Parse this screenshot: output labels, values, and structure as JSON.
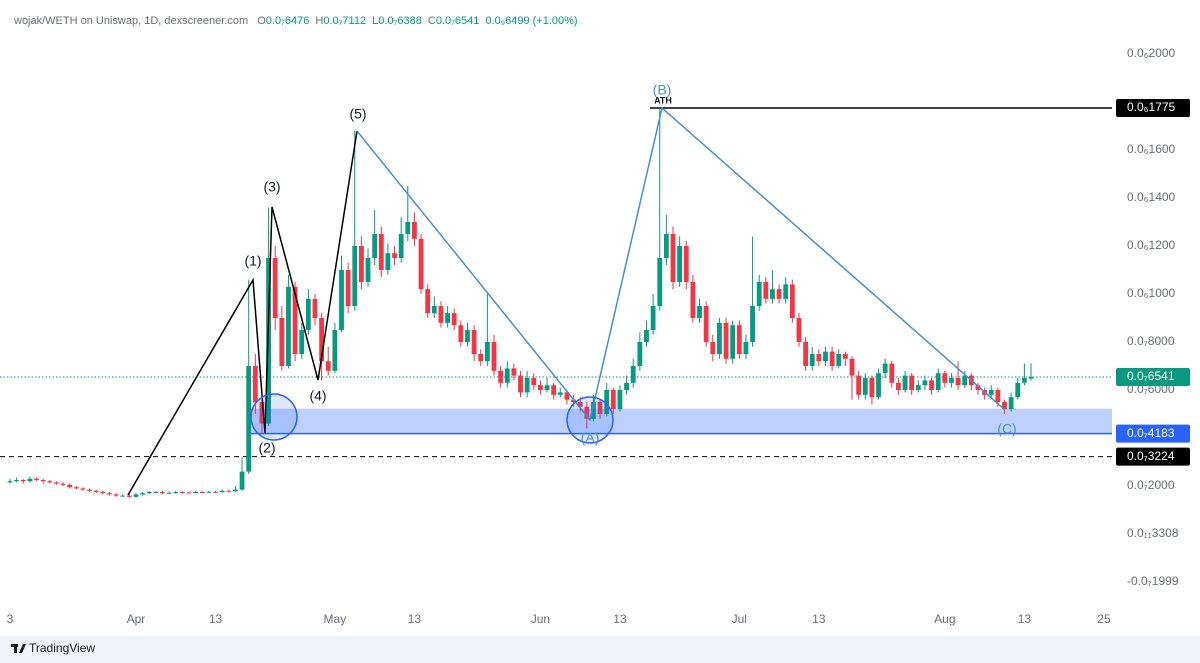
{
  "header": {
    "symbol": "wojak/WETH on Uniswap, 1D, dexscreener.com",
    "ohlc": [
      {
        "label": "O",
        "value": "0.0₇6476"
      },
      {
        "label": "H",
        "value": "0.0₇7112"
      },
      {
        "label": "L",
        "value": "0.0₇6388"
      },
      {
        "label": "C",
        "value": "0.0₇6541"
      }
    ],
    "change": "0.0₉6499 (+1.00%)"
  },
  "footer": {
    "brand": "TradingView"
  },
  "chart_data": {
    "type": "candlestick",
    "up_color": "#089981",
    "down_color": "#f23645",
    "categories": [
      "3",
      null,
      null,
      null,
      null,
      null,
      null,
      null,
      null,
      null,
      null,
      null,
      null,
      null,
      null,
      null,
      null,
      null,
      null,
      "Apr",
      null,
      null,
      null,
      null,
      null,
      null,
      null,
      null,
      null,
      null,
      null,
      "13",
      null,
      null,
      null,
      null,
      null,
      null,
      null,
      null,
      null,
      null,
      null,
      null,
      null,
      null,
      null,
      null,
      null,
      "May",
      null,
      null,
      null,
      null,
      null,
      null,
      null,
      null,
      null,
      null,
      null,
      "13",
      null,
      null,
      null,
      null,
      null,
      null,
      null,
      null,
      null,
      null,
      null,
      null,
      null,
      null,
      null,
      null,
      null,
      null,
      "Jun",
      null,
      null,
      null,
      null,
      null,
      null,
      null,
      null,
      null,
      null,
      null,
      "13",
      null,
      null,
      null,
      null,
      null,
      null,
      null,
      null,
      null,
      null,
      null,
      null,
      null,
      null,
      null,
      null,
      null,
      "Jul",
      null,
      null,
      null,
      null,
      null,
      null,
      null,
      null,
      null,
      null,
      null,
      "13",
      null,
      null,
      null,
      null,
      null,
      null,
      null,
      null,
      null,
      null,
      null,
      null,
      null,
      null,
      null,
      null,
      null,
      null,
      "Aug",
      null,
      null,
      null,
      null,
      null,
      null,
      null,
      null,
      null,
      null,
      null,
      "13",
      null,
      null,
      null,
      null,
      null,
      null,
      null,
      null,
      null,
      null,
      null,
      "25"
    ],
    "ohlc": [
      [
        2.15e-08,
        2.3e-08,
        2.1e-08,
        2.2e-08
      ],
      [
        2.2e-08,
        2.35e-08,
        2.15e-08,
        2.25e-08
      ],
      [
        2.25e-08,
        2.3e-08,
        2.1e-08,
        2.2e-08
      ],
      [
        2.2e-08,
        2.4e-08,
        2.15e-08,
        2.3e-08
      ],
      [
        2.3e-08,
        2.35e-08,
        2.2e-08,
        2.25e-08
      ],
      [
        2.25e-08,
        2.3e-08,
        2.1e-08,
        2.2e-08
      ],
      [
        2.2e-08,
        2.25e-08,
        2.1e-08,
        2.15e-08
      ],
      [
        2.15e-08,
        2.2e-08,
        2.05e-08,
        2.1e-08
      ],
      [
        2.1e-08,
        2.15e-08,
        2e-08,
        2.05e-08
      ],
      [
        2.05e-08,
        2.1e-08,
        1.9e-08,
        1.95e-08
      ],
      [
        1.95e-08,
        2e-08,
        1.85e-08,
        1.9e-08
      ],
      [
        1.9e-08,
        1.95e-08,
        1.8e-08,
        1.85e-08
      ],
      [
        1.85e-08,
        1.9e-08,
        1.75e-08,
        1.8e-08
      ],
      [
        1.8e-08,
        1.85e-08,
        1.7e-08,
        1.75e-08
      ],
      [
        1.75e-08,
        1.8e-08,
        1.65e-08,
        1.7e-08
      ],
      [
        1.7e-08,
        1.75e-08,
        1.6e-08,
        1.65e-08
      ],
      [
        1.65e-08,
        1.7e-08,
        1.55e-08,
        1.6e-08
      ],
      [
        1.6e-08,
        1.65e-08,
        1.55e-08,
        1.6e-08
      ],
      [
        1.6e-08,
        1.65e-08,
        1.5e-08,
        1.55e-08
      ],
      [
        1.55e-08,
        1.7e-08,
        1.5e-08,
        1.65e-08
      ],
      [
        1.65e-08,
        1.75e-08,
        1.6e-08,
        1.7e-08
      ],
      [
        1.7e-08,
        1.8e-08,
        1.65e-08,
        1.75e-08
      ],
      [
        1.75e-08,
        1.8e-08,
        1.7e-08,
        1.75e-08
      ],
      [
        1.75e-08,
        1.8e-08,
        1.65e-08,
        1.7e-08
      ],
      [
        1.7e-08,
        1.78e-08,
        1.66e-08,
        1.72e-08
      ],
      [
        1.72e-08,
        1.8e-08,
        1.68e-08,
        1.75e-08
      ],
      [
        1.75e-08,
        1.78e-08,
        1.68e-08,
        1.73e-08
      ],
      [
        1.73e-08,
        1.77e-08,
        1.68e-08,
        1.72e-08
      ],
      [
        1.72e-08,
        1.8e-08,
        1.7e-08,
        1.75e-08
      ],
      [
        1.75e-08,
        1.78e-08,
        1.7e-08,
        1.74e-08
      ],
      [
        1.74e-08,
        1.8e-08,
        1.7e-08,
        1.76e-08
      ],
      [
        1.76e-08,
        1.8e-08,
        1.7e-08,
        1.75e-08
      ],
      [
        1.75e-08,
        1.85e-08,
        1.72e-08,
        1.8e-08
      ],
      [
        1.8e-08,
        1.84e-08,
        1.74e-08,
        1.78e-08
      ],
      [
        1.78e-08,
        2e-08,
        1.75e-08,
        1.85e-08
      ],
      [
        1.85e-08,
        3.2e-08,
        1.8e-08,
        2.6e-08
      ],
      [
        2.6e-08,
        1.06e-07,
        2.5e-08,
        7e-08
      ],
      [
        7e-08,
        7.5e-08,
        5e-08,
        5.5e-08
      ],
      [
        5.5e-08,
        6e-08,
        4.2e-08,
        4.6e-08
      ],
      [
        4.6e-08,
        1.36e-07,
        4.5e-08,
        1.15e-07
      ],
      [
        1.15e-07,
        1.2e-07,
        8.5e-08,
        9e-08
      ],
      [
        9e-08,
        9.5e-08,
        6.8e-08,
        7e-08
      ],
      [
        7e-08,
        1.08e-07,
        6.9e-08,
        1.03e-07
      ],
      [
        1.03e-07,
        1.05e-07,
        7.2e-08,
        7.5e-08
      ],
      [
        7.5e-08,
        8.8e-08,
        7.3e-08,
        8.5e-08
      ],
      [
        8.5e-08,
        1.02e-07,
        8.3e-08,
        9.8e-08
      ],
      [
        9.8e-08,
        1e-07,
        8.7e-08,
        9e-08
      ],
      [
        9e-08,
        9.2e-08,
        6.4e-08,
        7.2e-08
      ],
      [
        7.2e-08,
        7.8e-08,
        6.6e-08,
        6.8e-08
      ],
      [
        6.8e-08,
        8.8e-08,
        6.7e-08,
        8.5e-08
      ],
      [
        8.5e-08,
        1.16e-07,
        8.4e-08,
        1.1e-07
      ],
      [
        1.1e-07,
        1.13e-07,
        9.2e-08,
        9.5e-08
      ],
      [
        9.5e-08,
        1.68e-07,
        9.3e-08,
        1.2e-07
      ],
      [
        1.2e-07,
        1.24e-07,
        1.02e-07,
        1.05e-07
      ],
      [
        1.05e-07,
        1.19e-07,
        1.03e-07,
        1.15e-07
      ],
      [
        1.15e-07,
        1.35e-07,
        1.12e-07,
        1.25e-07
      ],
      [
        1.25e-07,
        1.28e-07,
        1.07e-07,
        1.1e-07
      ],
      [
        1.1e-07,
        1.21e-07,
        1.08e-07,
        1.17e-07
      ],
      [
        1.17e-07,
        1.2e-07,
        1.12e-07,
        1.15e-07
      ],
      [
        1.15e-07,
        1.32e-07,
        1.13e-07,
        1.25e-07
      ],
      [
        1.25e-07,
        1.45e-07,
        1.22e-07,
        1.3e-07
      ],
      [
        1.3e-07,
        1.34e-07,
        1.2e-07,
        1.23e-07
      ],
      [
        1.23e-07,
        1.25e-07,
        1e-07,
        1.02e-07
      ],
      [
        1.02e-07,
        1.04e-07,
        9e-08,
        9.2e-08
      ],
      [
        9.2e-08,
        9.9e-08,
        9e-08,
        9.5e-08
      ],
      [
        9.5e-08,
        9.7e-08,
        8.6e-08,
        8.8e-08
      ],
      [
        8.8e-08,
        9.5e-08,
        8.6e-08,
        9.2e-08
      ],
      [
        9.2e-08,
        9.4e-08,
        8.5e-08,
        8.7e-08
      ],
      [
        8.7e-08,
        8.9e-08,
        7.8e-08,
        8e-08
      ],
      [
        8e-08,
        8.8e-08,
        7.8e-08,
        8.5e-08
      ],
      [
        8.5e-08,
        8.7e-08,
        7.2e-08,
        7.5e-08
      ],
      [
        7.5e-08,
        7.7e-08,
        7e-08,
        7.2e-08
      ],
      [
        7.2e-08,
        1e-07,
        7e-08,
        8e-08
      ],
      [
        8e-08,
        8.3e-08,
        6.6e-08,
        6.8e-08
      ],
      [
        6.8e-08,
        7e-08,
        6.1e-08,
        6.3e-08
      ],
      [
        6.3e-08,
        7.2e-08,
        6.1e-08,
        6.9e-08
      ],
      [
        6.9e-08,
        7.1e-08,
        6.4e-08,
        6.6e-08
      ],
      [
        6.6e-08,
        6.8e-08,
        5.7e-08,
        5.9e-08
      ],
      [
        5.9e-08,
        6.8e-08,
        5.7e-08,
        6.5e-08
      ],
      [
        6.5e-08,
        6.7e-08,
        6e-08,
        6.2e-08
      ],
      [
        6.2e-08,
        6.4e-08,
        5.8e-08,
        6e-08
      ],
      [
        6e-08,
        6.5e-08,
        5.9e-08,
        6.2e-08
      ],
      [
        6.2e-08,
        6.3e-08,
        5.6e-08,
        5.8e-08
      ],
      [
        5.8e-08,
        6.1e-08,
        5.7e-08,
        5.9e-08
      ],
      [
        5.9e-08,
        6e-08,
        5.4e-08,
        5.6e-08
      ],
      [
        5.6e-08,
        5.8e-08,
        5.3e-08,
        5.5e-08
      ],
      [
        5.5e-08,
        5.7e-08,
        5.1e-08,
        5.3e-08
      ],
      [
        5.3e-08,
        5.5e-08,
        4.4e-08,
        4.8e-08
      ],
      [
        4.8e-08,
        5.8e-08,
        4.7e-08,
        5.5e-08
      ],
      [
        5.5e-08,
        5.6e-08,
        4.8e-08,
        5e-08
      ],
      [
        5e-08,
        6.3e-08,
        4.9e-08,
        6e-08
      ],
      [
        6e-08,
        6.1e-08,
        5e-08,
        5.2e-08
      ],
      [
        5.2e-08,
        6.2e-08,
        5.1e-08,
        6e-08
      ],
      [
        6e-08,
        6.6e-08,
        5.8e-08,
        6.3e-08
      ],
      [
        6.3e-08,
        7.3e-08,
        6.1e-08,
        7e-08
      ],
      [
        7e-08,
        8.4e-08,
        6.8e-08,
        8e-08
      ],
      [
        8e-08,
        8.9e-08,
        7.8e-08,
        8.5e-08
      ],
      [
        8.5e-08,
        1e-07,
        8.3e-08,
        9.5e-08
      ],
      [
        9.5e-08,
        1.775e-07,
        9.3e-08,
        1.15e-07
      ],
      [
        1.15e-07,
        1.33e-07,
        1.12e-07,
        1.25e-07
      ],
      [
        1.25e-07,
        1.28e-07,
        1.02e-07,
        1.05e-07
      ],
      [
        1.05e-07,
        1.24e-07,
        1.03e-07,
        1.2e-07
      ],
      [
        1.2e-07,
        1.22e-07,
        1.02e-07,
        1.05e-07
      ],
      [
        1.05e-07,
        1.08e-07,
        8.8e-08,
        9e-08
      ],
      [
        9e-08,
        9.8e-08,
        8.8e-08,
        9.5e-08
      ],
      [
        9.5e-08,
        9.7e-08,
        7.8e-08,
        8e-08
      ],
      [
        8e-08,
        8.3e-08,
        7.2e-08,
        7.5e-08
      ],
      [
        7.5e-08,
        9e-08,
        7.3e-08,
        8.8e-08
      ],
      [
        8.8e-08,
        9e-08,
        7.1e-08,
        7.3e-08
      ],
      [
        7.3e-08,
        8.9e-08,
        7.1e-08,
        8.7e-08
      ],
      [
        8.7e-08,
        8.9e-08,
        7.3e-08,
        7.5e-08
      ],
      [
        7.5e-08,
        8.3e-08,
        7.3e-08,
        8e-08
      ],
      [
        8e-08,
        1.24e-07,
        7.8e-08,
        9.5e-08
      ],
      [
        9.5e-08,
        1.08e-07,
        9.3e-08,
        1.05e-07
      ],
      [
        1.05e-07,
        1.07e-07,
        9.6e-08,
        9.8e-08
      ],
      [
        9.8e-08,
        1.1e-07,
        9.6e-08,
        1.02e-07
      ],
      [
        1.02e-07,
        1.04e-07,
        9.6e-08,
        9.8e-08
      ],
      [
        9.8e-08,
        1.07e-07,
        9.6e-08,
        1.04e-07
      ],
      [
        1.04e-07,
        1.06e-07,
        8.8e-08,
        9e-08
      ],
      [
        9e-08,
        9.2e-08,
        7.8e-08,
        8e-08
      ],
      [
        8e-08,
        8.2e-08,
        6.8e-08,
        7e-08
      ],
      [
        7e-08,
        7.8e-08,
        6.8e-08,
        7.5e-08
      ],
      [
        7.5e-08,
        7.7e-08,
        7e-08,
        7.2e-08
      ],
      [
        7.2e-08,
        7.8e-08,
        7e-08,
        7.6e-08
      ],
      [
        7.6e-08,
        7.8e-08,
        6.8e-08,
        7e-08
      ],
      [
        7e-08,
        7.7e-08,
        6.9e-08,
        7.5e-08
      ],
      [
        7.5e-08,
        7.6e-08,
        7e-08,
        7.3e-08
      ],
      [
        7.3e-08,
        7.4e-08,
        5.6e-08,
        6.6e-08
      ],
      [
        6.6e-08,
        6.8e-08,
        5.6e-08,
        5.8e-08
      ],
      [
        5.8e-08,
        6.7e-08,
        5.6e-08,
        6.5e-08
      ],
      [
        6.5e-08,
        6.6e-08,
        5.4e-08,
        5.7e-08
      ],
      [
        5.7e-08,
        6.9e-08,
        5.6e-08,
        6.7e-08
      ],
      [
        6.7e-08,
        7.3e-08,
        6.5e-08,
        7.1e-08
      ],
      [
        7.1e-08,
        7.2e-08,
        6.1e-08,
        6.3e-08
      ],
      [
        6.3e-08,
        6.5e-08,
        5.8e-08,
        6e-08
      ],
      [
        6e-08,
        6.8e-08,
        5.9e-08,
        6.6e-08
      ],
      [
        6.6e-08,
        6.7e-08,
        5.8e-08,
        6e-08
      ],
      [
        6e-08,
        6.4e-08,
        5.9e-08,
        6.2e-08
      ],
      [
        6.2e-08,
        6.6e-08,
        6e-08,
        6.4e-08
      ],
      [
        6.4e-08,
        6.5e-08,
        5.8e-08,
        6e-08
      ],
      [
        6e-08,
        6.9e-08,
        5.9e-08,
        6.7e-08
      ],
      [
        6.7e-08,
        6.8e-08,
        6.1e-08,
        6.3e-08
      ],
      [
        6.3e-08,
        6.7e-08,
        6.1e-08,
        6.5e-08
      ],
      [
        6.5e-08,
        7.2e-08,
        6e-08,
        6.2e-08
      ],
      [
        6.2e-08,
        6.8e-08,
        6.1e-08,
        6.6e-08
      ],
      [
        6.6e-08,
        6.7e-08,
        6e-08,
        6.2e-08
      ],
      [
        6.2e-08,
        6.3e-08,
        5.8e-08,
        6e-08
      ],
      [
        6e-08,
        6.1e-08,
        5.6e-08,
        5.8e-08
      ],
      [
        5.8e-08,
        6.2e-08,
        5.7e-08,
        6e-08
      ],
      [
        6e-08,
        6.1e-08,
        5.3e-08,
        5.5e-08
      ],
      [
        5.5e-08,
        5.6e-08,
        5e-08,
        5.2e-08
      ],
      [
        5.2e-08,
        5.9e-08,
        5.1e-08,
        5.7e-08
      ],
      [
        5.7e-08,
        6.5e-08,
        5.6e-08,
        6.3e-08
      ],
      [
        6.3e-08,
        7.1e-08,
        6.2e-08,
        6.5e-08
      ],
      [
        6.476e-08,
        7.112e-08,
        6.388e-08,
        6.541e-08
      ],
      null,
      null,
      null,
      null,
      null,
      null,
      null,
      null,
      null,
      null,
      null
    ],
    "ylim": [
      -3.083e-08,
      2.225e-07
    ],
    "yticks": [
      {
        "value": 2e-07,
        "label": "0.0₆2000"
      },
      {
        "value": 1.6e-07,
        "label": "0.0₆1600"
      },
      {
        "value": 1.4e-07,
        "label": "0.0₆1400"
      },
      {
        "value": 1.2e-07,
        "label": "0.0₆1200"
      },
      {
        "value": 1e-07,
        "label": "0.0₆1000"
      },
      {
        "value": 8e-08,
        "label": "0.0₇8000"
      },
      {
        "value": 6e-08,
        "label": "0.0₇6000"
      },
      {
        "value": 2e-08,
        "label": "0.0₇2000"
      },
      {
        "value": 3.308e-12,
        "label": "0.0₁₁3308"
      },
      {
        "value": -1.999e-08,
        "label": "-0.0₇1999"
      }
    ],
    "price_lines": [
      {
        "value": 1.775e-07,
        "label": "0.0₆1775",
        "color": "#000000",
        "style": "solid"
      },
      {
        "value": 6.541e-08,
        "label": "0.0₇6541",
        "color": "#089981",
        "style": "dotted"
      },
      {
        "value": 4.183e-08,
        "label": "0.0₇4183",
        "color": "#2962ff",
        "style": "solid"
      },
      {
        "value": 3.224e-08,
        "label": "0.0₇3224",
        "color": "#000000",
        "style": "dashed"
      }
    ],
    "annotations": [
      "(1)",
      "(2)",
      "(3)",
      "(4)",
      "(5)",
      "(A)",
      "(B)",
      "(C)",
      "ATH"
    ]
  }
}
